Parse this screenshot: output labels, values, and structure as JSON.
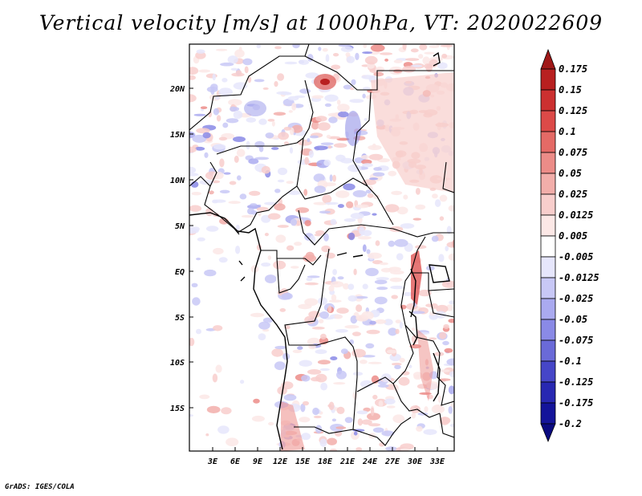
{
  "title": "Vertical velocity [m/s] at 1000hPa, VT: 2020022609",
  "credit": "GrADS: IGES/COLA",
  "map": {
    "lat_labels": [
      "20N",
      "15N",
      "10N",
      "5N",
      "EQ",
      "5S",
      "10S",
      "15S"
    ],
    "lon_labels": [
      "3E",
      "6E",
      "9E",
      "12E",
      "15E",
      "18E",
      "21E",
      "24E",
      "27E",
      "30E",
      "33E"
    ]
  },
  "colorbar": {
    "labels": [
      "0.175",
      "0.15",
      "0.125",
      "0.1",
      "0.075",
      "0.05",
      "0.025",
      "0.0125",
      "0.005",
      "-0.005",
      "-0.0125",
      "-0.025",
      "-0.05",
      "-0.075",
      "-0.1",
      "-0.125",
      "-0.175",
      "-0.2"
    ],
    "colors": [
      "#a01818",
      "#b82020",
      "#cc3030",
      "#dc4a48",
      "#e46a66",
      "#ec8c88",
      "#f2aeaa",
      "#f8cecc",
      "#fce8e6",
      "#ffffff",
      "#e6e6fc",
      "#c8c8f6",
      "#aaaaf0",
      "#8a8ae6",
      "#6a6ad8",
      "#4646c8",
      "#2828b2",
      "#14149a",
      "#0a0a80"
    ]
  },
  "colors": {
    "positive": "#e05050",
    "negative": "#5a5ae0",
    "outline": "#000000"
  }
}
